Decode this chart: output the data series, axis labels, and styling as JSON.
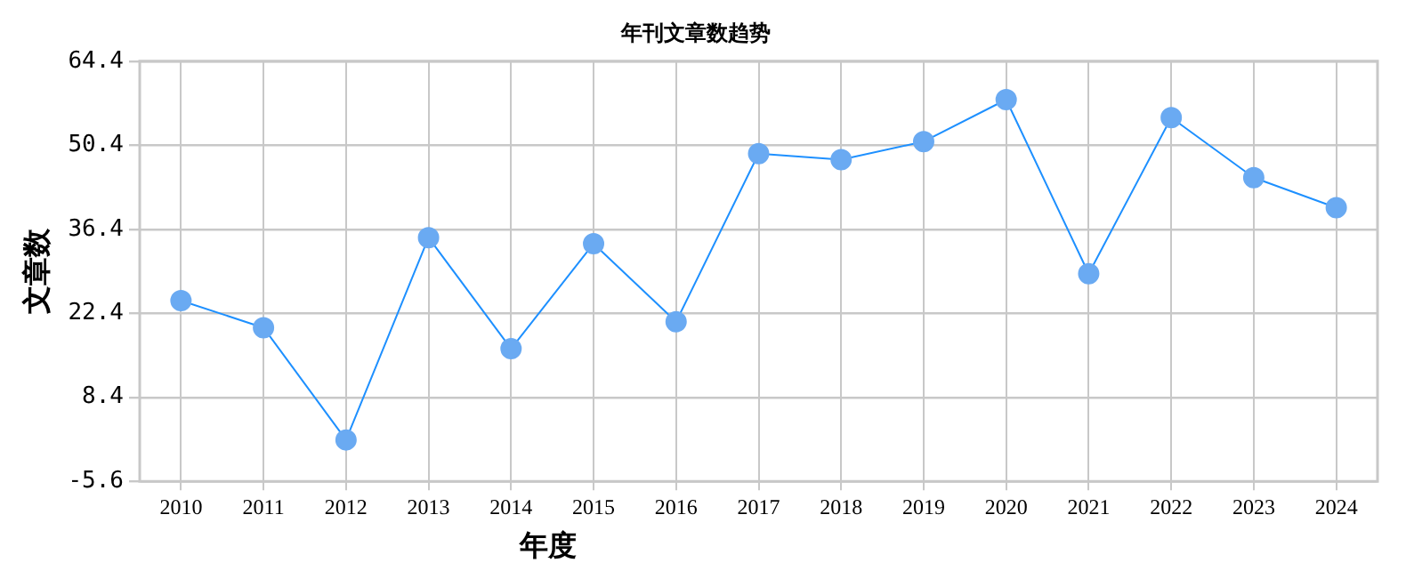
{
  "chart_data": {
    "type": "line",
    "title": "年刊文章数趋势",
    "xlabel": "年度",
    "ylabel": "文章数",
    "categories": [
      "2010",
      "2011",
      "2012",
      "2013",
      "2014",
      "2015",
      "2016",
      "2017",
      "2018",
      "2019",
      "2020",
      "2021",
      "2022",
      "2023",
      "2024"
    ],
    "series": [
      {
        "color": "#1e90ff",
        "values": [
          24.5,
          20,
          1.3,
          35,
          16.5,
          34,
          21,
          49,
          48,
          51,
          58,
          29,
          55,
          45,
          40
        ]
      }
    ],
    "ylim": [
      -5.6,
      64.4
    ],
    "yticks": [
      -5.6,
      8.4,
      22.4,
      36.4,
      50.4,
      64.4
    ],
    "grid": true,
    "marker": "circle",
    "line_style": "solid",
    "legend": false
  }
}
